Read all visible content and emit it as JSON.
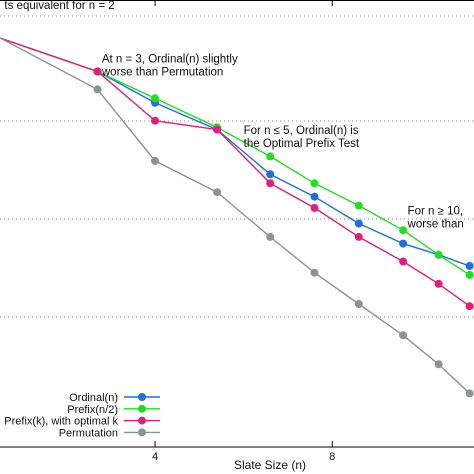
{
  "chart_data": {
    "type": "line",
    "xlabel": "Slate Size (n)",
    "ylabel": "",
    "x_ticks": [
      4,
      8
    ],
    "xlim": [
      0.5,
      11.2
    ],
    "ylim": [
      0,
      100
    ],
    "grid": "horizontal dotted",
    "legend_placement": "bottom-right",
    "annotations": [
      {
        "lines": [
          "ts equivalent for n = 2"
        ],
        "x": 0.6,
        "y": 98
      },
      {
        "lines": [
          "At n = 3, Ordinal(n) slightly",
          "worse than Permutation"
        ],
        "x": 2.8,
        "y": 86
      },
      {
        "lines": [
          "For n ≤ 5, Ordinal(n) is",
          "the Optimal Prefix Test"
        ],
        "x": 6.0,
        "y": 70
      },
      {
        "lines": [
          "For n ≥ 10,",
          "worse than"
        ],
        "x": 9.7,
        "y": 52
      }
    ],
    "series": [
      {
        "name": "Ordinal(n)",
        "color": "#1f6fe0",
        "points": [
          [
            0.5,
            91.5
          ],
          [
            2.7,
            84
          ],
          [
            4,
            77
          ],
          [
            5.4,
            71
          ],
          [
            6.6,
            61
          ],
          [
            7.6,
            56
          ],
          [
            8.6,
            50
          ],
          [
            9.6,
            45.5
          ],
          [
            10.4,
            43
          ],
          [
            11.1,
            40.5
          ]
        ]
      },
      {
        "name": "Prefix(n/2)",
        "color": "#22dd22",
        "points": [
          [
            0.5,
            91.5
          ],
          [
            2.7,
            84
          ],
          [
            4,
            78
          ],
          [
            5.4,
            71.5
          ],
          [
            6.6,
            65
          ],
          [
            7.6,
            59
          ],
          [
            8.6,
            54
          ],
          [
            9.6,
            48.5
          ],
          [
            10.4,
            43
          ],
          [
            11.1,
            38.5
          ]
        ]
      },
      {
        "name": "Prefix(k), with optimal k",
        "color": "#e0207a",
        "points": [
          [
            0.5,
            91.5
          ],
          [
            2.7,
            84
          ],
          [
            4,
            73
          ],
          [
            5.4,
            71
          ],
          [
            6.6,
            59
          ],
          [
            7.6,
            53.5
          ],
          [
            8.6,
            47
          ],
          [
            9.6,
            41.5
          ],
          [
            10.4,
            36.5
          ],
          [
            11.1,
            31.5
          ]
        ]
      },
      {
        "name": "Permutation",
        "color": "#8a9490",
        "points": [
          [
            0.5,
            91.5
          ],
          [
            2.7,
            80
          ],
          [
            4,
            64
          ],
          [
            5.4,
            57
          ],
          [
            6.6,
            47
          ],
          [
            7.6,
            39
          ],
          [
            8.6,
            32
          ],
          [
            9.6,
            25
          ],
          [
            10.4,
            18.5
          ],
          [
            11.1,
            12
          ]
        ]
      }
    ]
  }
}
